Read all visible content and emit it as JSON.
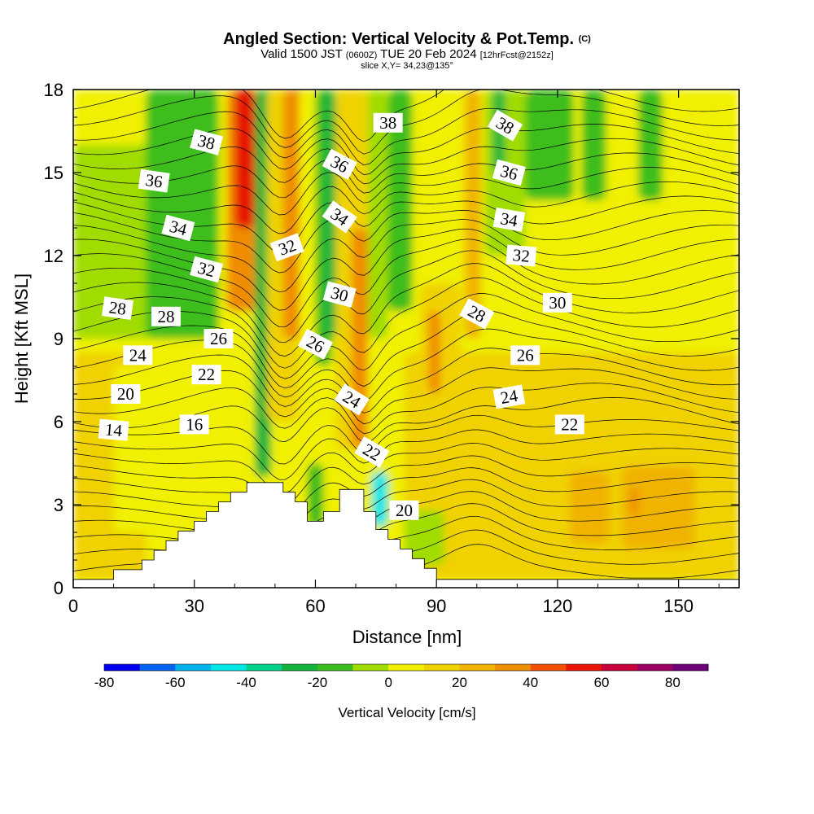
{
  "title": {
    "main": "Angled Section: Vertical Velocity & Pot.Temp.",
    "copyright": "(C)",
    "valid_prefix": "Valid 1500 JST",
    "valid_z": "(0600Z)",
    "valid_date": "TUE 20 Feb 2024",
    "forecast": "[12hrFcst@2152z]",
    "slice": "slice X,Y= 34,23@135°"
  },
  "chart_data": {
    "type": "heatmap",
    "title": "Angled Section: Vertical Velocity & Pot.Temp.",
    "xlabel": "Distance [nm]",
    "ylabel": "Height [Kft MSL]",
    "xlim": [
      0,
      165
    ],
    "ylim": [
      0,
      18
    ],
    "x_ticks": [
      "0",
      "30",
      "60",
      "90",
      "120",
      "150"
    ],
    "y_ticks": [
      "0",
      "3",
      "6",
      "9",
      "12",
      "15",
      "18"
    ],
    "colorbar": {
      "title": "Vertical Velocity [cm/s]",
      "tick_labels": [
        "-80",
        "-60",
        "-40",
        "-20",
        "0",
        "20",
        "40",
        "60",
        "80"
      ],
      "levels": [
        -80,
        -70,
        -60,
        -50,
        -40,
        -30,
        -20,
        -10,
        0,
        10,
        20,
        30,
        40,
        50,
        60,
        70,
        80,
        90
      ],
      "colors": [
        "#0000f0",
        "#0064f0",
        "#00b4f0",
        "#00e6e6",
        "#00d28c",
        "#14b43c",
        "#3cbe1e",
        "#a0dc00",
        "#f0f000",
        "#f0d200",
        "#f0b400",
        "#f08c00",
        "#f05000",
        "#e61400",
        "#c8003c",
        "#a00064",
        "#6e0078"
      ]
    },
    "terrain_nm_kft": [
      [
        0,
        0.3
      ],
      [
        10,
        0.3
      ],
      [
        10,
        0.65
      ],
      [
        17,
        0.65
      ],
      [
        17,
        1.0
      ],
      [
        20,
        1.0
      ],
      [
        20,
        1.35
      ],
      [
        23,
        1.35
      ],
      [
        23,
        1.7
      ],
      [
        26,
        1.7
      ],
      [
        26,
        2.05
      ],
      [
        30,
        2.05
      ],
      [
        30,
        2.4
      ],
      [
        33,
        2.4
      ],
      [
        33,
        2.75
      ],
      [
        36,
        2.75
      ],
      [
        36,
        3.1
      ],
      [
        39,
        3.1
      ],
      [
        39,
        3.45
      ],
      [
        43,
        3.45
      ],
      [
        43,
        3.8
      ],
      [
        52,
        3.8
      ],
      [
        52,
        3.45
      ],
      [
        55,
        3.45
      ],
      [
        55,
        3.1
      ],
      [
        58,
        3.1
      ],
      [
        58,
        2.4
      ],
      [
        62,
        2.4
      ],
      [
        62,
        2.75
      ],
      [
        66,
        2.75
      ],
      [
        66,
        3.55
      ],
      [
        72,
        3.55
      ],
      [
        72,
        2.75
      ],
      [
        75,
        2.75
      ],
      [
        75,
        2.1
      ],
      [
        78,
        2.1
      ],
      [
        78,
        1.75
      ],
      [
        81,
        1.75
      ],
      [
        81,
        1.4
      ],
      [
        84,
        1.4
      ],
      [
        84,
        1.05
      ],
      [
        87,
        1.05
      ],
      [
        87,
        0.7
      ],
      [
        90,
        0.7
      ],
      [
        90,
        0.3
      ],
      [
        165,
        0.3
      ]
    ],
    "vertical_velocity_features": [
      {
        "x": 0,
        "w": 165,
        "y0": 0,
        "y1": 18,
        "value": 5
      },
      {
        "x": 82,
        "w": 83,
        "y0": 0.3,
        "y1": 8.5,
        "value": 12
      },
      {
        "x": 0,
        "w": 18,
        "y0": 0.3,
        "y1": 8.5,
        "value": 11
      },
      {
        "x": 10,
        "w": 12,
        "y0": 2,
        "y1": 8,
        "value": 3
      },
      {
        "x": 0,
        "w": 20,
        "y0": 9,
        "y1": 16,
        "value": -3
      },
      {
        "x": 18,
        "w": 18,
        "y0": 9,
        "y1": 18,
        "value": -12
      },
      {
        "x": 38,
        "w": 8,
        "y0": 10,
        "y1": 18,
        "value": 35
      },
      {
        "x": 40,
        "w": 5,
        "y0": 13,
        "y1": 18,
        "value": 58
      },
      {
        "x": 45,
        "w": 4,
        "y0": 4,
        "y1": 18,
        "value": -30
      },
      {
        "x": 48,
        "w": 8,
        "y0": 6,
        "y1": 18,
        "value": 15
      },
      {
        "x": 52,
        "w": 5,
        "y0": 9,
        "y1": 18,
        "value": 32
      },
      {
        "x": 56,
        "w": 4,
        "y0": 5,
        "y1": 18,
        "value": 5
      },
      {
        "x": 60,
        "w": 4,
        "y0": 8,
        "y1": 18,
        "value": -15
      },
      {
        "x": 62,
        "w": 3,
        "y0": 9,
        "y1": 18,
        "value": -28
      },
      {
        "x": 65,
        "w": 8,
        "y0": 5,
        "y1": 18,
        "value": 15
      },
      {
        "x": 69,
        "w": 4,
        "y0": 5,
        "y1": 13,
        "value": 38
      },
      {
        "x": 73,
        "w": 5,
        "y0": 9,
        "y1": 18,
        "value": -8
      },
      {
        "x": 78,
        "w": 6,
        "y0": 10,
        "y1": 18,
        "value": -14
      },
      {
        "x": 86,
        "w": 10,
        "y0": 6,
        "y1": 11,
        "value": 18
      },
      {
        "x": 88,
        "w": 3,
        "y0": 7,
        "y1": 10,
        "value": 30
      },
      {
        "x": 97,
        "w": 4,
        "y0": 9,
        "y1": 18,
        "value": 28
      },
      {
        "x": 102,
        "w": 10,
        "y0": 12,
        "y1": 18,
        "value": -8
      },
      {
        "x": 104,
        "w": 3,
        "y0": 15,
        "y1": 18,
        "value": -22
      },
      {
        "x": 112,
        "w": 12,
        "y0": 14,
        "y1": 18,
        "value": -14
      },
      {
        "x": 126,
        "w": 6,
        "y0": 14,
        "y1": 18,
        "value": -14
      },
      {
        "x": 140,
        "w": 6,
        "y0": 14,
        "y1": 18,
        "value": -14
      },
      {
        "x": 120,
        "w": 38,
        "y0": 0.8,
        "y1": 5.2,
        "value": 16
      },
      {
        "x": 123,
        "w": 10,
        "y0": 1.6,
        "y1": 4.2,
        "value": 24
      },
      {
        "x": 136,
        "w": 18,
        "y0": 1.4,
        "y1": 4.4,
        "value": 24
      },
      {
        "x": 138,
        "w": 2,
        "y0": 2.6,
        "y1": 3.6,
        "value": 34
      },
      {
        "x": 58,
        "w": 4,
        "y0": 2.2,
        "y1": 4.5,
        "value": -12
      },
      {
        "x": 74,
        "w": 4,
        "y0": 2.2,
        "y1": 4.2,
        "value": -45
      },
      {
        "x": 82,
        "w": 10,
        "y0": 0.8,
        "y1": 2.8,
        "value": -8
      }
    ],
    "theta_labels": [
      {
        "text": "38",
        "x": 33,
        "y": 16.1,
        "angle": 15
      },
      {
        "text": "38",
        "x": 78,
        "y": 16.8,
        "angle": 0
      },
      {
        "text": "38",
        "x": 107,
        "y": 16.7,
        "angle": 30
      },
      {
        "text": "36",
        "x": 20,
        "y": 14.7,
        "angle": 8
      },
      {
        "text": "36",
        "x": 66,
        "y": 15.3,
        "angle": 28
      },
      {
        "text": "36",
        "x": 108,
        "y": 15.0,
        "angle": 15
      },
      {
        "text": "34",
        "x": 26,
        "y": 13.0,
        "angle": 15
      },
      {
        "text": "34",
        "x": 66,
        "y": 13.4,
        "angle": 35
      },
      {
        "text": "34",
        "x": 108,
        "y": 13.3,
        "angle": 10
      },
      {
        "text": "32",
        "x": 33,
        "y": 11.5,
        "angle": 15
      },
      {
        "text": "32",
        "x": 53,
        "y": 12.3,
        "angle": -20
      },
      {
        "text": "32",
        "x": 111,
        "y": 12.0,
        "angle": 5
      },
      {
        "text": "30",
        "x": 66,
        "y": 10.6,
        "angle": 15
      },
      {
        "text": "30",
        "x": 120,
        "y": 10.3,
        "angle": 0
      },
      {
        "text": "28",
        "x": 11,
        "y": 10.1,
        "angle": 8
      },
      {
        "text": "28",
        "x": 23,
        "y": 9.8,
        "angle": 0
      },
      {
        "text": "28",
        "x": 100,
        "y": 9.9,
        "angle": 28
      },
      {
        "text": "26",
        "x": 36,
        "y": 9.0,
        "angle": 0
      },
      {
        "text": "26",
        "x": 60,
        "y": 8.8,
        "angle": 28
      },
      {
        "text": "26",
        "x": 112,
        "y": 8.4,
        "angle": 0
      },
      {
        "text": "24",
        "x": 16,
        "y": 8.4,
        "angle": 0
      },
      {
        "text": "24",
        "x": 69,
        "y": 6.8,
        "angle": 32
      },
      {
        "text": "24",
        "x": 108,
        "y": 6.9,
        "angle": -10
      },
      {
        "text": "22",
        "x": 33,
        "y": 7.7,
        "angle": 0
      },
      {
        "text": "22",
        "x": 74,
        "y": 4.9,
        "angle": 30
      },
      {
        "text": "22",
        "x": 123,
        "y": 5.9,
        "angle": 0
      },
      {
        "text": "20",
        "x": 13,
        "y": 7.0,
        "angle": 0
      },
      {
        "text": "20",
        "x": 82,
        "y": 2.8,
        "angle": 0
      },
      {
        "text": "16",
        "x": 30,
        "y": 5.9,
        "angle": 0
      },
      {
        "text": "14",
        "x": 10,
        "y": 5.7,
        "angle": 5
      }
    ]
  }
}
